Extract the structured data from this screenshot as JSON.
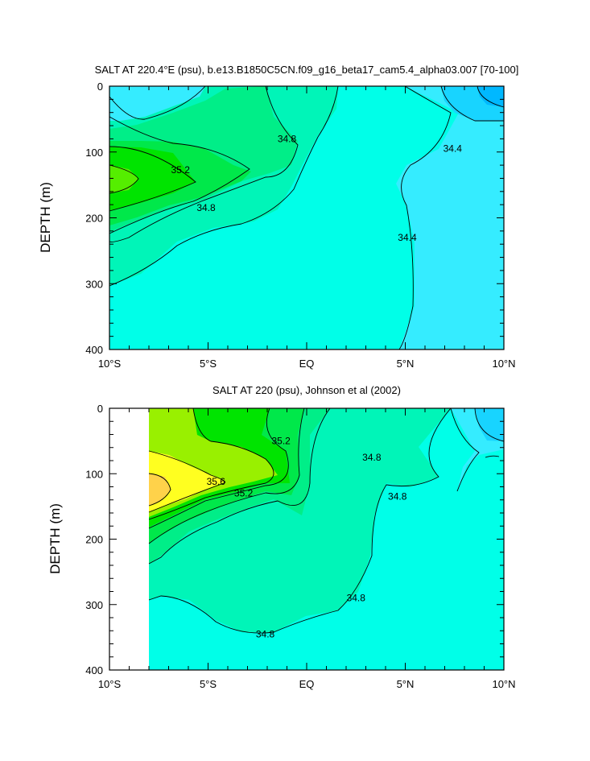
{
  "chart_data": [
    {
      "type": "contour",
      "title": "SALT AT 220.4°E (psu), b.e13.B1850C5CN.f09_g16_beta17_cam5.4_alpha03.007 [70-100]",
      "ylabel": "DEPTH (m)",
      "xlabel": "",
      "x_ticks": [
        "10°S",
        "5°S",
        "EQ",
        "5°N",
        "10°N"
      ],
      "x_tick_values": [
        -10,
        -5,
        0,
        5,
        10
      ],
      "y_ticks": [
        "0",
        "100",
        "200",
        "300",
        "400"
      ],
      "y_tick_values": [
        0,
        100,
        200,
        300,
        400
      ],
      "xlim": [
        -10,
        10
      ],
      "ylim": [
        400,
        0
      ],
      "contour_labels": [
        {
          "text": "34.8",
          "lat": -1.0,
          "depth": 80
        },
        {
          "text": "35.2",
          "lat": -6.4,
          "depth": 127
        },
        {
          "text": "34.8",
          "lat": -5.1,
          "depth": 185
        },
        {
          "text": "34.4",
          "lat": 7.4,
          "depth": 95
        },
        {
          "text": "34.4",
          "lat": 5.1,
          "depth": 230
        }
      ]
    },
    {
      "type": "contour",
      "title": "SALT AT 220 (psu), Johnson et al (2002)",
      "ylabel": "DEPTH (m)",
      "xlabel": "",
      "x_ticks": [
        "10°S",
        "5°S",
        "EQ",
        "5°N",
        "10°N"
      ],
      "x_tick_values": [
        -10,
        -5,
        0,
        5,
        10
      ],
      "y_ticks": [
        "0",
        "100",
        "200",
        "300",
        "400"
      ],
      "y_tick_values": [
        0,
        100,
        200,
        300,
        400
      ],
      "xlim": [
        -10,
        10
      ],
      "ylim": [
        400,
        0
      ],
      "contour_labels": [
        {
          "text": "35.2",
          "lat": -1.3,
          "depth": 50
        },
        {
          "text": "35.6",
          "lat": -4.6,
          "depth": 112
        },
        {
          "text": "35.2",
          "lat": -3.2,
          "depth": 130
        },
        {
          "text": "34.8",
          "lat": 3.3,
          "depth": 75
        },
        {
          "text": "34.8",
          "lat": 4.6,
          "depth": 135
        },
        {
          "text": "34.8",
          "lat": 2.5,
          "depth": 290
        },
        {
          "text": "34.8",
          "lat": -2.1,
          "depth": 345
        }
      ]
    }
  ]
}
